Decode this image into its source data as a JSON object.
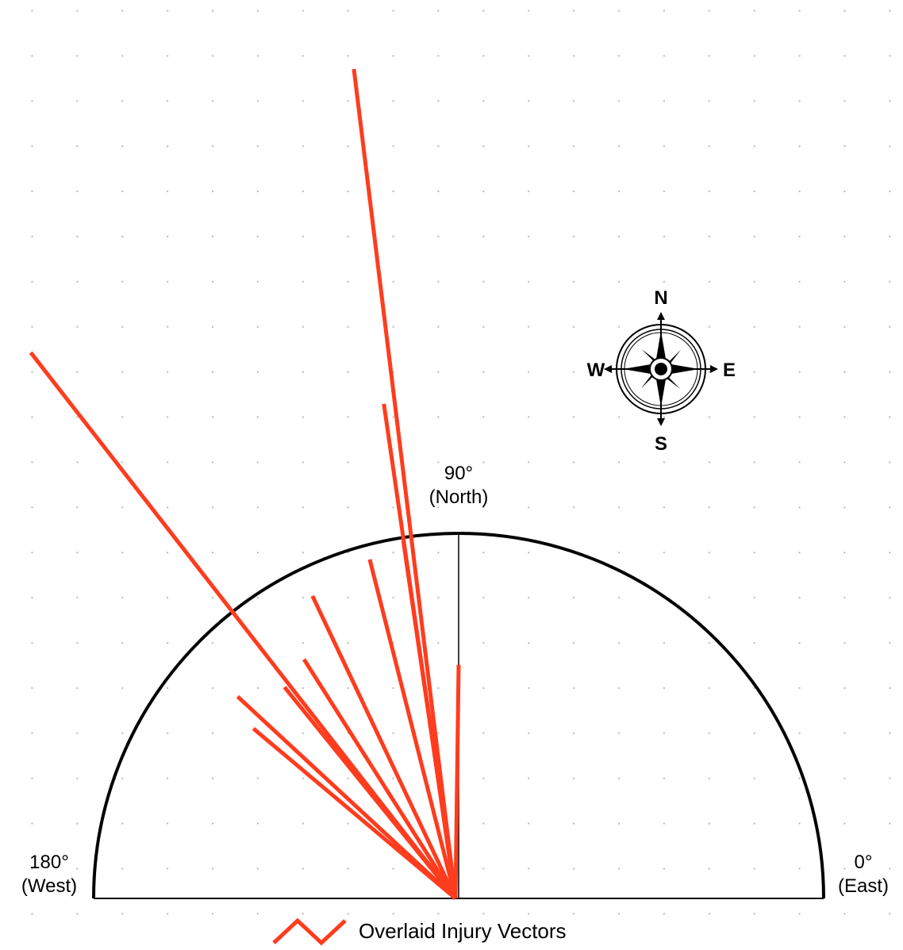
{
  "chart_data": {
    "type": "vector",
    "series": [
      {
        "name": "Overlaid Injury Vectors",
        "color": "#ff3c1e",
        "angles": [
          97.2,
          128.1,
          98.6,
          98.8,
          90,
          104.7,
          115.8,
          122.9,
          129.5,
          137.6,
          140.4
        ],
        "values": [
          2.29,
          1.9,
          1.37,
          0.99,
          0.64,
          0.96,
          0.92,
          0.78,
          0.75,
          0.82,
          0.73
        ]
      }
    ],
    "rlim": [
      0,
      1
    ],
    "thetaticks": [
      {
        "value": 0,
        "label": "0°"
      },
      {
        "value": 90,
        "label": "90°"
      },
      {
        "value": 180,
        "label": "180°"
      }
    ],
    "theta_tick_names": [
      "(East)",
      "(North)",
      "(West)"
    ],
    "compass_labels": [
      "N",
      "E",
      "S",
      "W"
    ]
  }
}
